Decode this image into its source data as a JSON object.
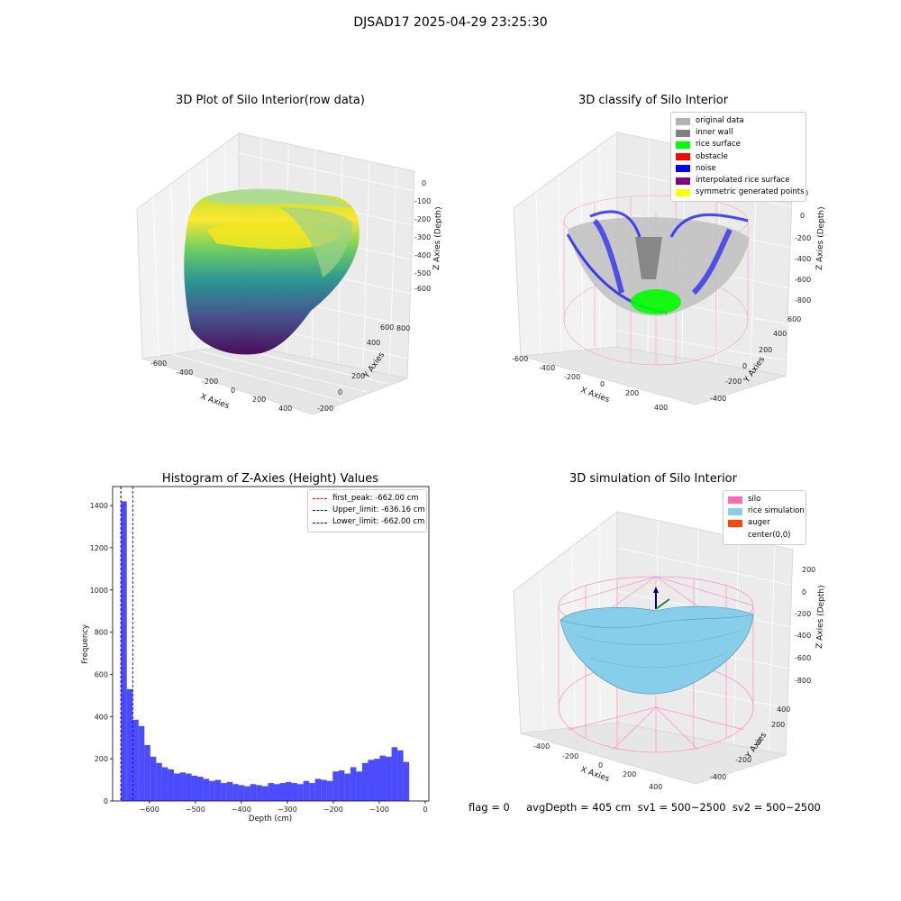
{
  "suptitle": "DJSAD17 2025-04-29 23:25:30",
  "plot_raw": {
    "title": "3D Plot of Silo Interior(row data)",
    "xlabel": "X Axies",
    "ylabel": "Y Axies",
    "zlabel": "Z Axies (Depth)",
    "xticks": [
      "-600",
      "-400",
      "-200",
      "0",
      "200",
      "400"
    ],
    "yticks": [
      "-200",
      "0",
      "200",
      "400",
      "600",
      "800"
    ],
    "zticks": [
      "0",
      "-100",
      "-200",
      "-300",
      "-400",
      "-500",
      "-600"
    ]
  },
  "plot_classify": {
    "title": "3D classify of Silo Interior",
    "xlabel": "X Axies",
    "ylabel": "Y Axies",
    "zlabel": "Z Axies (Depth)",
    "xticks": [
      "-600",
      "-400",
      "-200",
      "0",
      "200",
      "400"
    ],
    "yticks": [
      "-400",
      "-200",
      "0",
      "200",
      "400",
      "600"
    ],
    "zticks": [
      "200",
      "0",
      "-200",
      "-400",
      "-600",
      "-800"
    ],
    "legend": [
      {
        "label": "original data",
        "color": "#b3b3b3"
      },
      {
        "label": "inner wall",
        "color": "#808080"
      },
      {
        "label": "rice surface",
        "color": "#00ff00"
      },
      {
        "label": "obstacle",
        "color": "#ff0000"
      },
      {
        "label": "noise",
        "color": "#0000ff"
      },
      {
        "label": "interpolated rice surface",
        "color": "#800080"
      },
      {
        "label": "symmetric generated points",
        "color": "#ffff00"
      }
    ]
  },
  "plot_sim": {
    "title": "3D simulation of Silo Interior",
    "xlabel": "X Axies",
    "ylabel": "Y Axies",
    "zlabel": "Z Axies (Depth)",
    "xticks": [
      "-400",
      "-200",
      "0",
      "200",
      "400"
    ],
    "yticks": [
      "-400",
      "-200",
      "0",
      "200",
      "400"
    ],
    "zticks": [
      "200",
      "0",
      "-200",
      "-400",
      "-600",
      "-800"
    ],
    "legend": [
      {
        "label": "silo",
        "color": "#ff69b4"
      },
      {
        "label": "rice simulation",
        "color": "#87ceeb"
      },
      {
        "label": "auger",
        "color": "#ff4500"
      },
      {
        "label": "center(0,0)",
        "color": ""
      }
    ]
  },
  "status_text": "flag = 0     avgDepth = 405 cm  sv1 = 500~2500  sv2 = 500~2500",
  "chart_data": {
    "type": "bar",
    "title": "Histogram of Z-Axies (Height) Values",
    "xlabel": "Depth (cm)",
    "ylabel": "Frequency",
    "xlim": [
      -680,
      8
    ],
    "ylim": [
      0,
      1490
    ],
    "xticks": [
      -600,
      -500,
      -400,
      -300,
      -200,
      -100,
      0
    ],
    "yticks": [
      0,
      200,
      400,
      600,
      800,
      1000,
      1200,
      1400
    ],
    "bin_start": -662,
    "bin_width": 12.8,
    "values": [
      1420,
      530,
      385,
      355,
      265,
      210,
      180,
      160,
      150,
      130,
      135,
      130,
      120,
      115,
      105,
      95,
      100,
      85,
      90,
      80,
      75,
      70,
      80,
      75,
      70,
      85,
      80,
      85,
      90,
      85,
      80,
      95,
      85,
      105,
      100,
      95,
      140,
      145,
      130,
      160,
      140,
      180,
      195,
      200,
      215,
      210,
      255,
      240,
      185
    ],
    "bar_color": "#0000ff",
    "legend_position": "top-right",
    "lines": [
      {
        "label": "first_peak: -662.00 cm",
        "x": -662.0,
        "color": "#ff0000"
      },
      {
        "label": "Upper_limit: -636.16 cm",
        "x": -636.16,
        "color": "#0000ff"
      },
      {
        "label": "Lower_limit: -662.00 cm",
        "x": -662.0,
        "color": "#0000ff"
      }
    ]
  }
}
